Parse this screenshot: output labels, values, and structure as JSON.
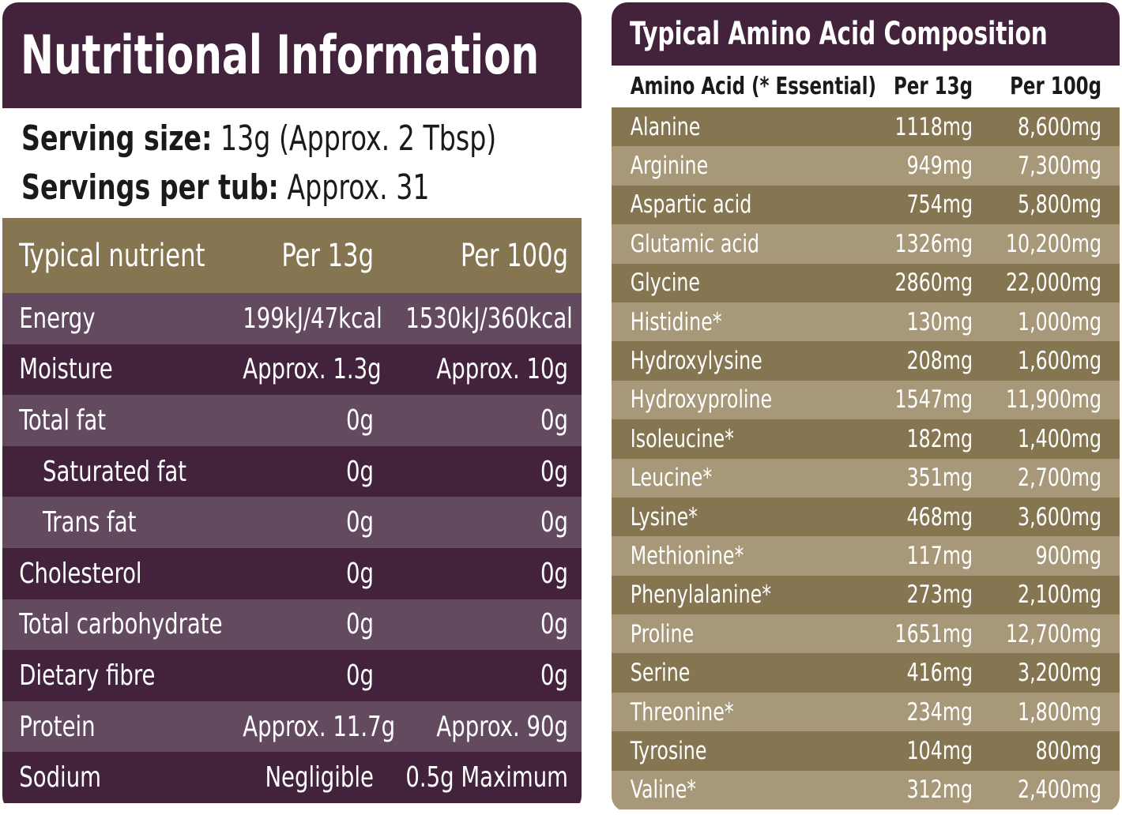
{
  "nutrition": {
    "title": "Nutritional Information",
    "serving_size_label": "Serving size:",
    "serving_size_value": "13g (Approx. 2 Tbsp)",
    "servings_label": "Servings per tub:",
    "servings_value": "Approx. 31",
    "headers": [
      "Typical nutrient",
      "Per 13g",
      "Per 100g"
    ],
    "rows": [
      {
        "name": "Energy",
        "per13": "199kJ/47kcal",
        "per100": "1530kJ/360kcal"
      },
      {
        "name": "Moisture",
        "per13": "Approx. 1.3g",
        "per100": "Approx. 10g"
      },
      {
        "name": "Total fat",
        "per13": "0g",
        "per100": "0g"
      },
      {
        "name": "Saturated fat",
        "per13": "0g",
        "per100": "0g"
      },
      {
        "name": "Trans fat",
        "per13": "0g",
        "per100": "0g"
      },
      {
        "name": "Cholesterol",
        "per13": "0g",
        "per100": "0g"
      },
      {
        "name": "Total carbohydrate",
        "per13": "0g",
        "per100": "0g"
      },
      {
        "name": "Dietary fibre",
        "per13": "0g",
        "per100": "0g"
      },
      {
        "name": "Protein",
        "per13": "Approx. 11.7g",
        "per100": "Approx. 90g"
      },
      {
        "name": "Sodium",
        "per13": "Negligible",
        "per100": "0.5g Maximum"
      }
    ]
  },
  "amino": {
    "title": "Typical Amino Acid Composition",
    "headers": [
      "Amino Acid (* Essential)",
      "Per 13g",
      "Per 100g"
    ],
    "rows": [
      {
        "name": "Alanine",
        "per13": "1118mg",
        "per100": "8,600mg"
      },
      {
        "name": "Arginine",
        "per13": "949mg",
        "per100": "7,300mg"
      },
      {
        "name": "Aspartic acid",
        "per13": "754mg",
        "per100": "5,800mg"
      },
      {
        "name": "Glutamic acid",
        "per13": "1326mg",
        "per100": "10,200mg"
      },
      {
        "name": "Glycine",
        "per13": "2860mg",
        "per100": "22,000mg"
      },
      {
        "name": "Histidine*",
        "per13": "130mg",
        "per100": "1,000mg"
      },
      {
        "name": "Hydroxylysine",
        "per13": "208mg",
        "per100": "1,600mg"
      },
      {
        "name": "Hydroxyproline",
        "per13": "1547mg",
        "per100": "11,900mg"
      },
      {
        "name": "Isoleucine*",
        "per13": "182mg",
        "per100": "1,400mg"
      },
      {
        "name": "Leucine*",
        "per13": "351mg",
        "per100": "2,700mg"
      },
      {
        "name": "Lysine*",
        "per13": "468mg",
        "per100": "3,600mg"
      },
      {
        "name": "Methionine*",
        "per13": "117mg",
        "per100": "900mg"
      },
      {
        "name": "Phenylalanine*",
        "per13": "273mg",
        "per100": "2,100mg"
      },
      {
        "name": "Proline",
        "per13": "1651mg",
        "per100": "12,700mg"
      },
      {
        "name": "Serine",
        "per13": "416mg",
        "per100": "3,200mg"
      },
      {
        "name": "Threonine*",
        "per13": "234mg",
        "per100": "1,800mg"
      },
      {
        "name": "Tyrosine",
        "per13": "104mg",
        "per100": "800mg"
      },
      {
        "name": "Valine*",
        "per13": "312mg",
        "per100": "2,400mg"
      }
    ]
  },
  "colors": {
    "plum_dark": "#43233c",
    "plum_light": "#644a5e",
    "olive_dark": "#857651",
    "olive_light": "#a69878"
  }
}
